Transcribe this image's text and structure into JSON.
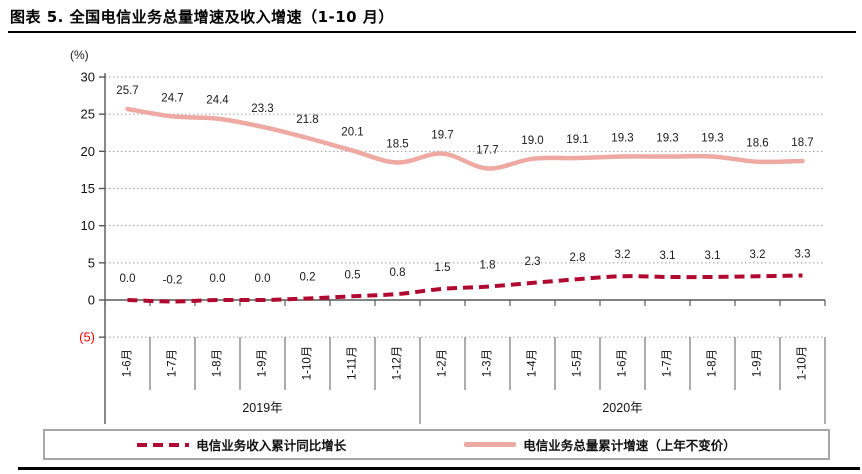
{
  "page": {
    "title": "图表 5. 全国电信业务总量增速及收入增速（1-10 月）"
  },
  "chart_data": {
    "type": "line",
    "title": "全国电信业务总量增速及收入增速（1-10月）",
    "unit_label": "(%)",
    "categories": [
      "1-6月",
      "1-7月",
      "1-8月",
      "1-9月",
      "1-10月",
      "1-11月",
      "1-12月",
      "1-2月",
      "1-3月",
      "1-4月",
      "1-5月",
      "1-6月",
      "1-7月",
      "1-8月",
      "1-9月",
      "1-10月"
    ],
    "category_groups": [
      {
        "label": "2019年",
        "span": 7
      },
      {
        "label": "2020年",
        "span": 9
      }
    ],
    "series": [
      {
        "name": "电信业务收入累计同比增长",
        "style": "dashed",
        "color": "#b10a30",
        "values": [
          0.0,
          -0.2,
          0.0,
          0.0,
          0.2,
          0.5,
          0.8,
          1.5,
          1.8,
          2.3,
          2.8,
          3.2,
          3.1,
          3.1,
          3.2,
          3.3
        ]
      },
      {
        "name": "电信业务总量累计增速（上年不变价）",
        "style": "solid",
        "color": "#efa9a3",
        "values": [
          25.7,
          24.7,
          24.4,
          23.3,
          21.8,
          20.1,
          18.5,
          19.7,
          17.7,
          19.0,
          19.1,
          19.3,
          19.3,
          19.3,
          18.6,
          18.7
        ]
      }
    ],
    "y_ticks": [
      30,
      25,
      20,
      15,
      10,
      5,
      0,
      -5
    ],
    "y_tick_labels": [
      "30",
      "25",
      "20",
      "15",
      "10",
      "5",
      "0",
      "(5)"
    ],
    "ylim": [
      -5,
      30
    ],
    "grid": "dotted-horizontal",
    "legend_position": "bottom",
    "colors": {
      "axis": "#595959",
      "gridline": "#9c9c9c",
      "data_label": "#1a1a1a",
      "negative_tick": "#ff0000"
    }
  }
}
